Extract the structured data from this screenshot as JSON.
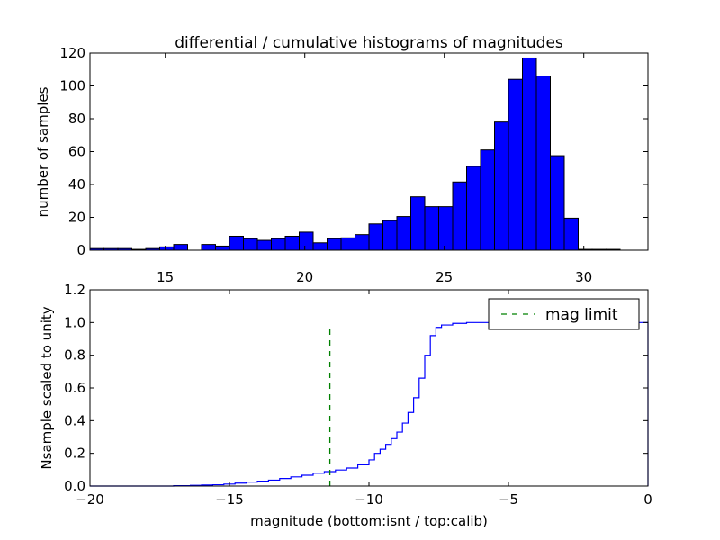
{
  "chart_data": [
    {
      "type": "bar",
      "title": "differential / cumulative histograms of magnitudes",
      "xlabel": "",
      "ylabel": "number of samples",
      "xlim": [
        12.3,
        32.3
      ],
      "ylim": [
        0,
        120
      ],
      "xticks": [
        "15",
        "20",
        "25",
        "30"
      ],
      "yticks": [
        "0",
        "20",
        "40",
        "60",
        "80",
        "100",
        "120"
      ],
      "bin_width": 0.5,
      "bar_color": "#0000ff",
      "bins": [
        {
          "x": 12.3,
          "y": 1
        },
        {
          "x": 12.8,
          "y": 1
        },
        {
          "x": 13.3,
          "y": 1
        },
        {
          "x": 13.8,
          "y": 0.5
        },
        {
          "x": 14.3,
          "y": 1
        },
        {
          "x": 14.8,
          "y": 2
        },
        {
          "x": 15.3,
          "y": 3.5
        },
        {
          "x": 15.8,
          "y": 0
        },
        {
          "x": 16.3,
          "y": 3.5
        },
        {
          "x": 16.8,
          "y": 2.5
        },
        {
          "x": 17.3,
          "y": 8.5
        },
        {
          "x": 17.8,
          "y": 7
        },
        {
          "x": 18.3,
          "y": 6
        },
        {
          "x": 18.8,
          "y": 7
        },
        {
          "x": 19.3,
          "y": 8.5
        },
        {
          "x": 19.8,
          "y": 11
        },
        {
          "x": 20.3,
          "y": 4.5
        },
        {
          "x": 20.8,
          "y": 7
        },
        {
          "x": 21.3,
          "y": 7.5
        },
        {
          "x": 21.8,
          "y": 9.5
        },
        {
          "x": 22.3,
          "y": 16
        },
        {
          "x": 22.8,
          "y": 18
        },
        {
          "x": 23.3,
          "y": 20.5
        },
        {
          "x": 23.8,
          "y": 32.5
        },
        {
          "x": 24.3,
          "y": 26.5
        },
        {
          "x": 24.8,
          "y": 26.5
        },
        {
          "x": 25.3,
          "y": 41.5
        },
        {
          "x": 25.8,
          "y": 51
        },
        {
          "x": 26.3,
          "y": 61
        },
        {
          "x": 26.8,
          "y": 78
        },
        {
          "x": 27.3,
          "y": 104
        },
        {
          "x": 27.8,
          "y": 117
        },
        {
          "x": 28.3,
          "y": 106
        },
        {
          "x": 28.8,
          "y": 57.5
        },
        {
          "x": 29.3,
          "y": 19.5
        },
        {
          "x": 29.8,
          "y": 0.5
        },
        {
          "x": 30.3,
          "y": 0.5
        },
        {
          "x": 30.8,
          "y": 0.5
        }
      ]
    },
    {
      "type": "line",
      "title": "",
      "xlabel": "magnitude (bottom:isnt / top:calib)",
      "ylabel": "Nsample scaled to unity",
      "xlim": [
        -20,
        0
      ],
      "ylim": [
        0,
        1.2
      ],
      "xticks": [
        "−20",
        "−15",
        "−10",
        "−5",
        "0"
      ],
      "yticks": [
        "0.0",
        "0.2",
        "0.4",
        "0.6",
        "0.8",
        "1.0",
        "1.2"
      ],
      "legend_position": "top-right",
      "series": [
        {
          "name": "",
          "style": "steps",
          "color": "#0000ff",
          "x": [
            -20,
            -17.0,
            -16.4,
            -16.0,
            -15.6,
            -15.2,
            -14.8,
            -14.4,
            -14.0,
            -13.6,
            -13.2,
            -12.8,
            -12.4,
            -12.0,
            -11.6,
            -11.2,
            -10.8,
            -10.4,
            -10.0,
            -9.8,
            -9.6,
            -9.4,
            -9.2,
            -9.0,
            -8.8,
            -8.6,
            -8.4,
            -8.2,
            -8.0,
            -7.8,
            -7.6,
            -7.4,
            -7.0,
            -6.5,
            -5.0,
            -3.0,
            -0.05,
            0
          ],
          "y": [
            0.0,
            0.002,
            0.004,
            0.006,
            0.008,
            0.012,
            0.018,
            0.024,
            0.03,
            0.036,
            0.046,
            0.056,
            0.066,
            0.078,
            0.088,
            0.098,
            0.11,
            0.13,
            0.16,
            0.2,
            0.225,
            0.255,
            0.29,
            0.33,
            0.385,
            0.45,
            0.54,
            0.66,
            0.8,
            0.92,
            0.97,
            0.985,
            0.995,
            1.0,
            1.0,
            1.0,
            1.0,
            0.0
          ]
        },
        {
          "name": "mag limit",
          "style": "dashed",
          "color": "#008000",
          "x": [
            -11.4,
            -11.4
          ],
          "y": [
            0,
            0.97
          ]
        }
      ]
    }
  ]
}
